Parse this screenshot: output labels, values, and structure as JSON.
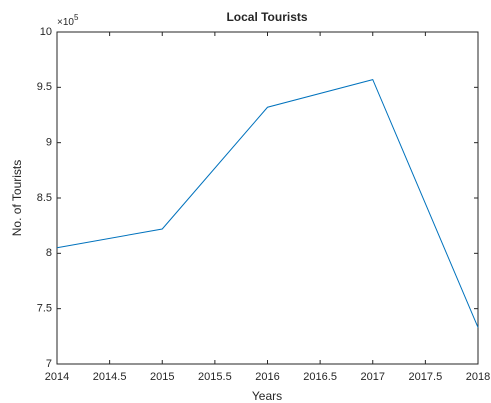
{
  "chart_data": {
    "type": "line",
    "title": "Local Tourists",
    "x_label": "Years",
    "y_label": "No. of Tourists",
    "y_exponent": {
      "base": "×10",
      "power": "5"
    },
    "x": [
      2014,
      2015,
      2016,
      2017,
      2018
    ],
    "series": [
      {
        "name": "Local Tourists",
        "color": "#0072bd",
        "values": [
          8.05,
          8.22,
          9.32,
          9.57,
          7.33
        ]
      }
    ],
    "xlim": [
      2014,
      2018
    ],
    "xticks": [
      2014,
      2014.5,
      2015,
      2015.5,
      2016,
      2016.5,
      2017,
      2017.5,
      2018
    ],
    "ylim": [
      7,
      10
    ],
    "yticks": [
      7,
      7.5,
      8,
      8.5,
      9,
      9.5,
      10
    ],
    "grid": false
  }
}
